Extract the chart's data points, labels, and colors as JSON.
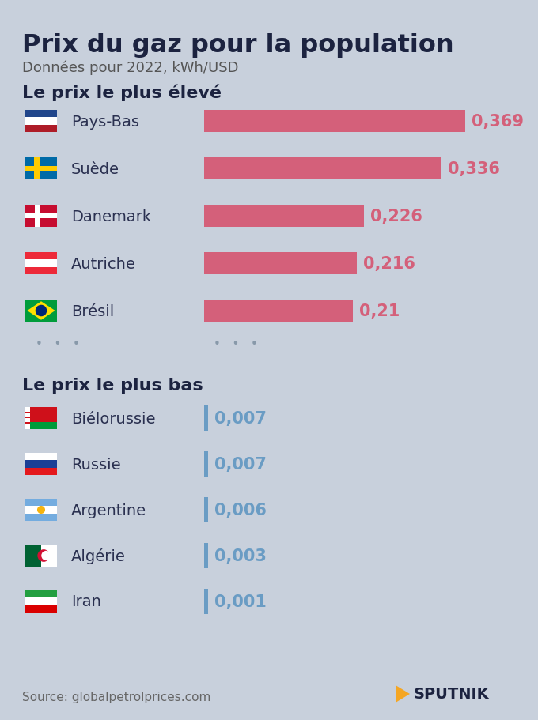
{
  "title": "Prix du gaz pour la population",
  "subtitle": "Données pour 2022, kWh/USD",
  "section1_title": "Le prix le plus élevé",
  "section2_title": "Le prix le plus bas",
  "high_countries": [
    "Pays-Bas",
    "Suède",
    "Danemark",
    "Autriche",
    "Brésil"
  ],
  "high_values": [
    0.369,
    0.336,
    0.226,
    0.216,
    0.21
  ],
  "high_labels": [
    "0,369",
    "0,336",
    "0,226",
    "0,216",
    "0,21"
  ],
  "low_countries": [
    "Biélorussie",
    "Russie",
    "Argentine",
    "Algérie",
    "Iran"
  ],
  "low_values": [
    0.007,
    0.007,
    0.006,
    0.003,
    0.001
  ],
  "low_labels": [
    "0,007",
    "0,007",
    "0,006",
    "0,003",
    "0,001"
  ],
  "high_bar_color": "#D4607A",
  "low_bar_color": "#6A9CC4",
  "value_color_high": "#D4607A",
  "value_color_low": "#6A9CC4",
  "bg_color": "#C8D0DC",
  "title_color": "#1C2340",
  "subtitle_color": "#555555",
  "section_title_color": "#1C2340",
  "country_color": "#2A3050",
  "source_color": "#666666",
  "source_text": "Source: globalpetrolprices.com",
  "sputnik_text": "SPUTNIK",
  "orange_color": "#F5A623"
}
